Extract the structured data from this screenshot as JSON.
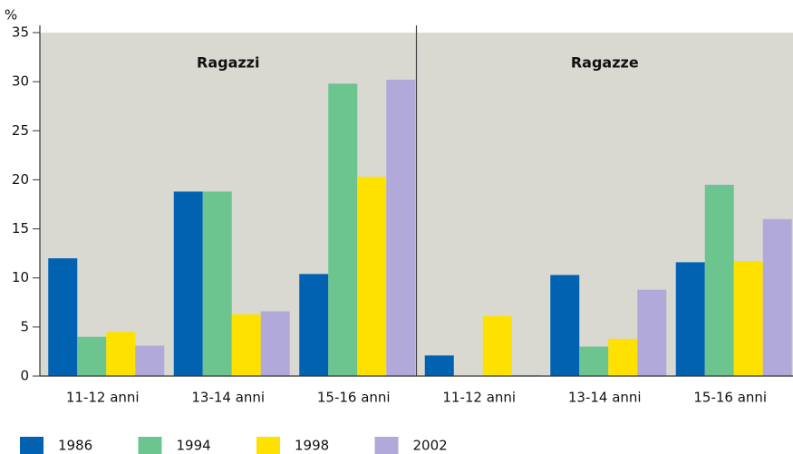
{
  "chart_data": {
    "type": "bar",
    "ylabel": "%",
    "panels": [
      "Ragazzi",
      "Ragazze"
    ],
    "categories": [
      "11-12 anni",
      "13-14 anni",
      "15-16 anni",
      "11-12 anni",
      "13-14 anni",
      "15-16 anni"
    ],
    "series": [
      {
        "name": "1986",
        "color": "#0062b1",
        "values": [
          12.0,
          18.8,
          10.4,
          2.1,
          10.3,
          11.6
        ]
      },
      {
        "name": "1994",
        "color": "#6cc48f",
        "values": [
          4.0,
          18.8,
          29.8,
          0,
          3.0,
          19.5
        ]
      },
      {
        "name": "1998",
        "color": "#ffe100",
        "values": [
          4.5,
          6.3,
          20.3,
          6.1,
          3.8,
          11.7
        ]
      },
      {
        "name": "2002",
        "color": "#b1a9d9",
        "values": [
          3.1,
          6.6,
          30.2,
          0.1,
          8.8,
          16.0
        ]
      }
    ],
    "ylim": [
      0,
      35
    ],
    "yticks": [
      0,
      5,
      10,
      15,
      20,
      25,
      30,
      35
    ],
    "grid": false,
    "legend": "bottom",
    "background": "#d9d9d2"
  }
}
